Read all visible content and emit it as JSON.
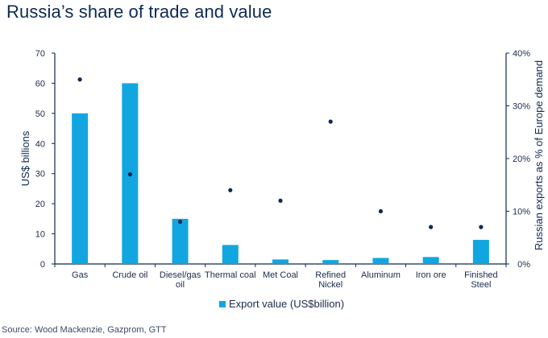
{
  "title": "Russia’s share of trade and value",
  "source": "Source: Wood Mackenzie, Gazprom, GTT",
  "colors": {
    "bar": "#12a6e0",
    "point": "#0b2a55",
    "axis": "#0c2a52"
  },
  "chart_data": {
    "type": "bar",
    "categories": [
      [
        "Gas"
      ],
      [
        "Crude oil"
      ],
      [
        "Diesel/gas",
        "oil"
      ],
      [
        "Thermal coal"
      ],
      [
        "Met Coal"
      ],
      [
        "Refined",
        "Nickel"
      ],
      [
        "Aluminum"
      ],
      [
        "Iron ore"
      ],
      [
        "Finished",
        "Steel"
      ]
    ],
    "series": [
      {
        "name": "Export value (US$billion)",
        "axis": "left",
        "type": "bar",
        "values": [
          50,
          60,
          15,
          6.3,
          1.5,
          1.3,
          2,
          2.3,
          8
        ]
      },
      {
        "name": "",
        "axis": "right",
        "type": "scatter",
        "values": [
          35,
          17,
          8,
          14,
          12,
          27,
          10,
          7,
          7
        ]
      }
    ],
    "ylabel": "US$ billions",
    "ylim": [
      0,
      70
    ],
    "yticks": [
      "0",
      "10",
      "20",
      "30",
      "40",
      "50",
      "60",
      "70"
    ],
    "y2label": "Russian exports as % of Europe demand",
    "y2lim": [
      0,
      40
    ],
    "y2ticks": [
      "0%",
      "10%",
      "20%",
      "30%",
      "40%"
    ],
    "legend": {
      "position": "bottom",
      "label": "Export value (US$billion)"
    },
    "grid": false
  }
}
